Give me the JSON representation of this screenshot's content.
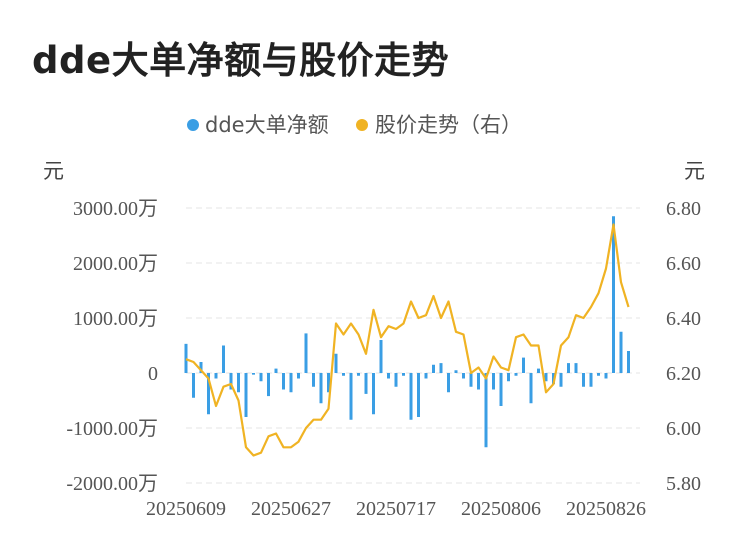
{
  "title": "dde大单净额与股价走势",
  "legend": [
    {
      "label": "dde大单净额",
      "color": "#3a9ee4"
    },
    {
      "label": "股价走势（右）",
      "color": "#f0b323"
    }
  ],
  "left_unit": "元",
  "right_unit": "元",
  "left_ticks": [
    "3000.00万",
    "2000.00万",
    "1000.00万",
    "0",
    "-1000.00万",
    "-2000.00万"
  ],
  "right_ticks": [
    "6.80",
    "6.60",
    "6.40",
    "6.20",
    "6.00",
    "5.80"
  ],
  "x_tick_labels": [
    {
      "index": 0,
      "label": "20250609"
    },
    {
      "index": 14,
      "label": "20250627"
    },
    {
      "index": 28,
      "label": "20250717"
    },
    {
      "index": 42,
      "label": "20250806"
    },
    {
      "index": 56,
      "label": "20250826"
    }
  ],
  "chart_data": {
    "type": "bar+line",
    "left_axis": {
      "unit": "万元",
      "min": -2000,
      "max": 3000
    },
    "right_axis": {
      "unit": "元",
      "min": 5.8,
      "max": 6.8
    },
    "grid": true,
    "legend_position": "top-center",
    "series": [
      {
        "name": "dde大单净额",
        "type": "bar",
        "axis": "left",
        "color": "#3a9ee4",
        "values": [
          530,
          -450,
          200,
          -750,
          -100,
          500,
          -300,
          -350,
          -800,
          -30,
          -150,
          -420,
          80,
          -300,
          -350,
          -100,
          720,
          -250,
          -550,
          -350,
          350,
          -50,
          -850,
          -50,
          -380,
          -750,
          600,
          -100,
          -250,
          -50,
          -850,
          -800,
          -100,
          150,
          180,
          -350,
          50,
          -100,
          -250,
          -300,
          -1350,
          -300,
          -600,
          -150,
          -50,
          280,
          -550,
          80,
          -150,
          -200,
          -250,
          180,
          180,
          -250,
          -250,
          -50,
          -100,
          2850,
          750,
          400
        ]
      },
      {
        "name": "股价走势（右）",
        "type": "line",
        "axis": "right",
        "color": "#f0b323",
        "values": [
          6.25,
          6.24,
          6.21,
          6.18,
          6.08,
          6.15,
          6.16,
          6.1,
          5.93,
          5.9,
          5.91,
          5.97,
          5.98,
          5.93,
          5.93,
          5.95,
          6.0,
          6.03,
          6.03,
          6.07,
          6.38,
          6.34,
          6.38,
          6.34,
          6.27,
          6.43,
          6.33,
          6.37,
          6.36,
          6.38,
          6.46,
          6.4,
          6.41,
          6.48,
          6.4,
          6.46,
          6.35,
          6.34,
          6.2,
          6.22,
          6.18,
          6.26,
          6.22,
          6.21,
          6.33,
          6.34,
          6.3,
          6.3,
          6.13,
          6.16,
          6.3,
          6.33,
          6.41,
          6.4,
          6.44,
          6.49,
          6.58,
          6.74,
          6.53,
          6.44
        ]
      }
    ]
  }
}
